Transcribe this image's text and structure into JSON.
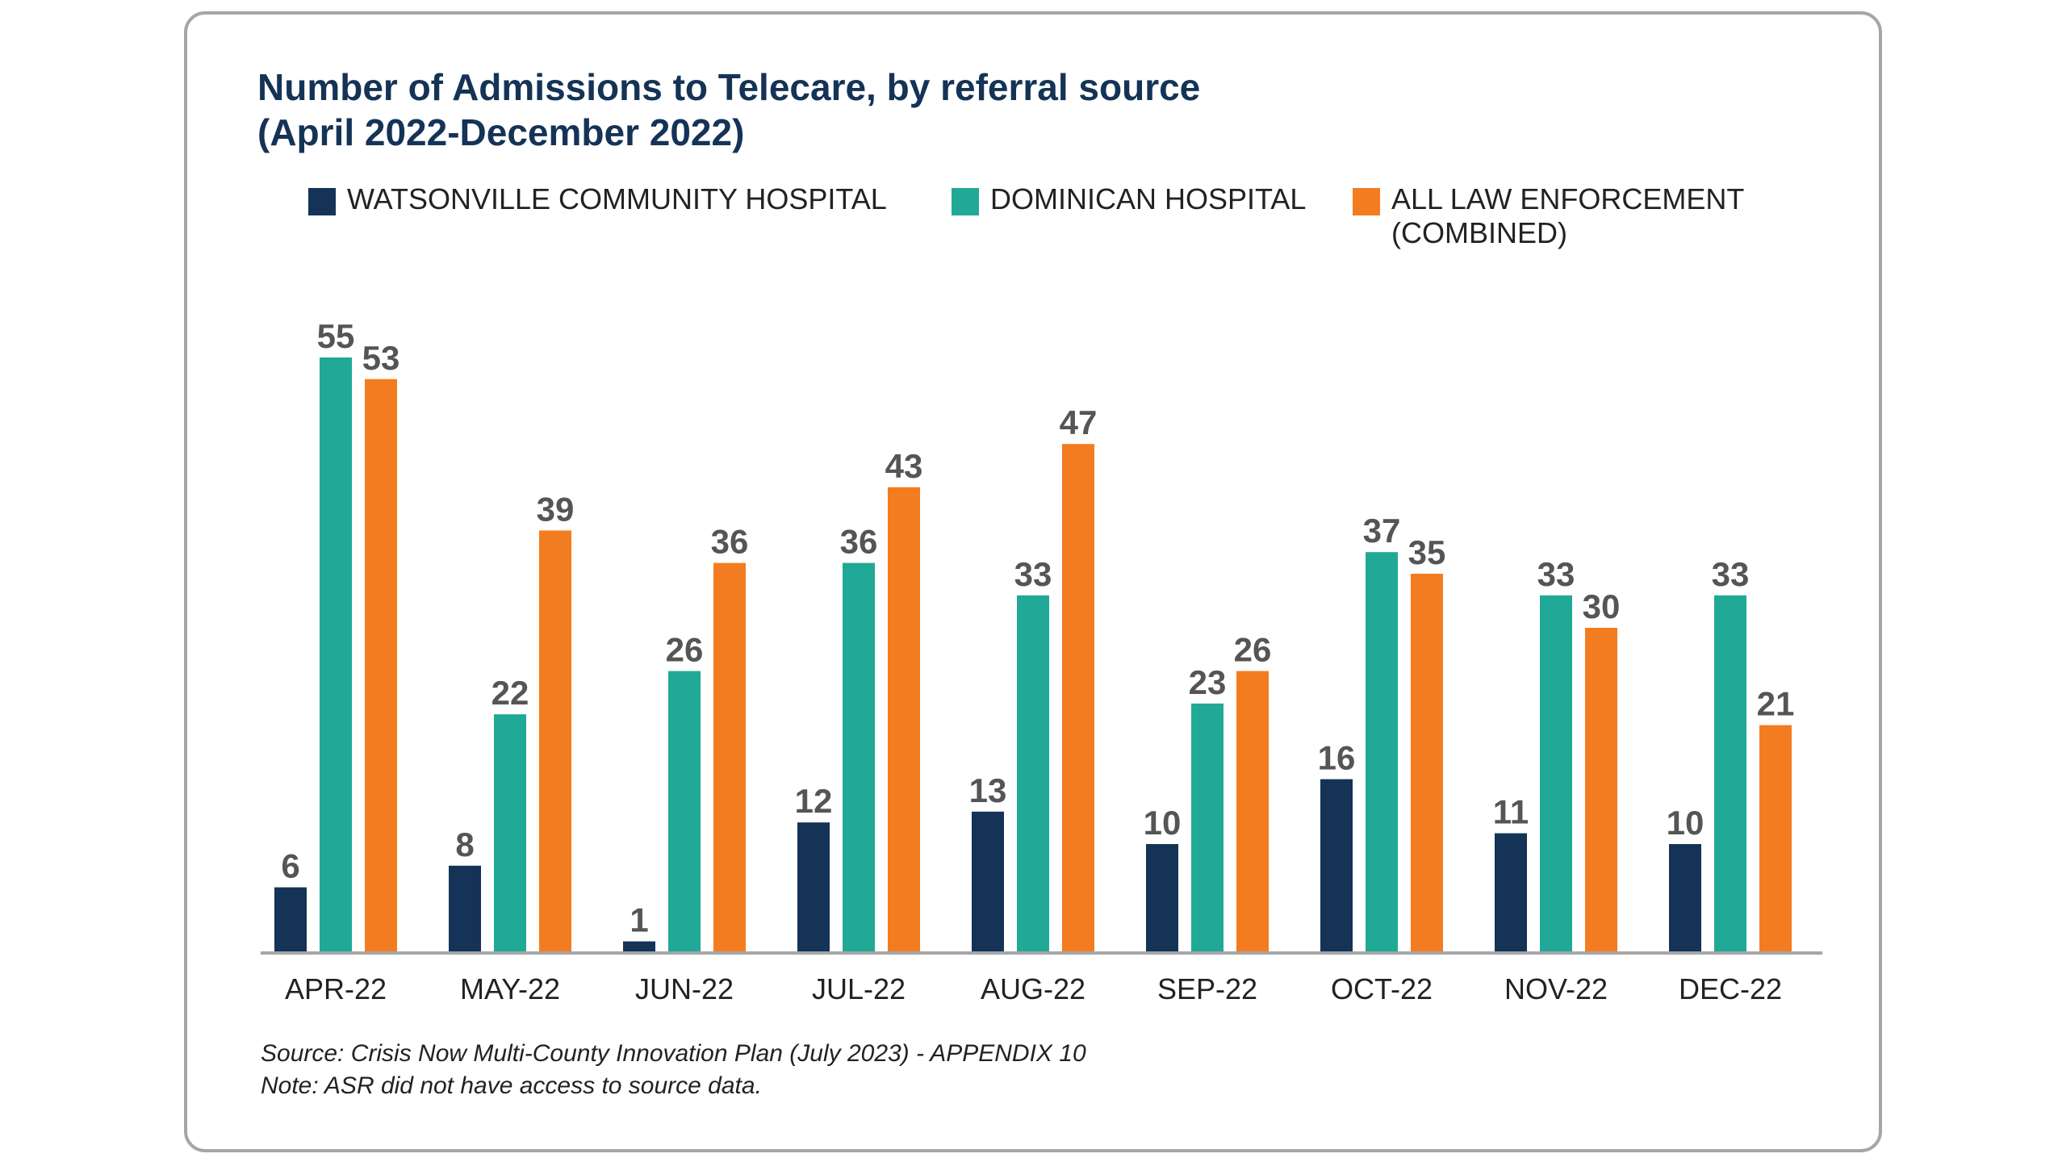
{
  "chart_data": {
    "type": "bar",
    "title": "Number of Admissions to Telecare, by referral source",
    "subtitle": "(April 2022-December 2022)",
    "categories": [
      "APR-22",
      "MAY-22",
      "JUN-22",
      "JUL-22",
      "AUG-22",
      "SEP-22",
      "OCT-22",
      "NOV-22",
      "DEC-22"
    ],
    "series": [
      {
        "name": "WATSONVILLE COMMUNITY HOSPITAL",
        "color": "#143356",
        "values": [
          6,
          8,
          1,
          12,
          13,
          10,
          16,
          11,
          10
        ]
      },
      {
        "name": "DOMINICAN HOSPITAL",
        "color": "#20a996",
        "values": [
          55,
          22,
          26,
          36,
          33,
          23,
          37,
          33,
          33
        ]
      },
      {
        "name": "ALL LAW ENFORCEMENT (COMBINED)",
        "color": "#f47c20",
        "values": [
          53,
          39,
          36,
          43,
          47,
          26,
          35,
          30,
          21
        ]
      }
    ],
    "legend_lines": {
      "watsonville": "WATSONVILLE COMMUNITY HOSPITAL",
      "dominican": "DOMINICAN HOSPITAL",
      "law_line1": "ALL LAW ENFORCEMENT",
      "law_line2": "(COMBINED)"
    },
    "xlabel": "",
    "ylabel": "",
    "grid": false,
    "legend": "top",
    "label_color": "#555555",
    "axis_color": "#a6a6a6"
  },
  "footnote": {
    "source": "Source: Crisis Now Multi-County Innovation Plan (July 2023) - APPENDIX 10",
    "note": "Note: ASR did not have access to source data."
  }
}
